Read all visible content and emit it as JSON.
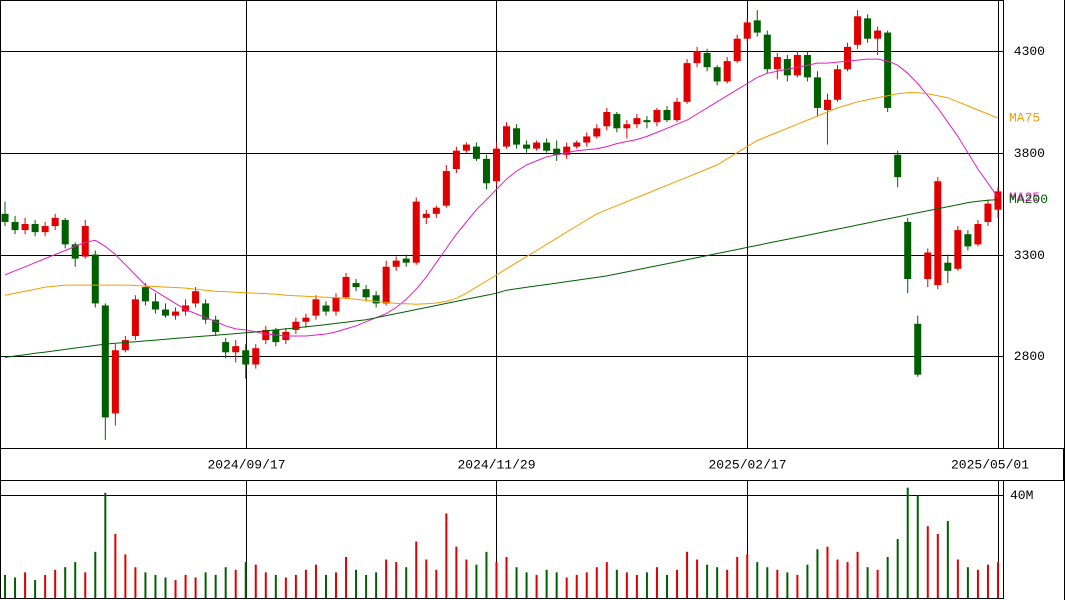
{
  "chart_data": {
    "type": "candlestick",
    "categories": [
      null,
      null,
      null,
      null,
      null,
      null,
      null,
      null,
      null,
      null,
      null,
      null,
      null,
      null,
      null,
      null,
      null,
      null,
      null,
      null,
      null,
      null,
      null,
      null,
      "2024/09/17",
      null,
      null,
      null,
      null,
      null,
      null,
      null,
      null,
      null,
      null,
      null,
      null,
      null,
      null,
      null,
      null,
      null,
      null,
      null,
      null,
      null,
      null,
      null,
      null,
      "2024/11/29",
      null,
      null,
      null,
      null,
      null,
      null,
      null,
      null,
      null,
      null,
      null,
      null,
      null,
      null,
      null,
      null,
      null,
      null,
      null,
      null,
      null,
      null,
      null,
      null,
      "2025/02/17",
      null,
      null,
      null,
      null,
      null,
      null,
      null,
      null,
      null,
      null,
      null,
      null,
      null,
      null,
      null,
      null,
      null,
      null,
      null,
      null,
      null,
      null,
      null,
      null,
      "2025/05/01"
    ],
    "open": [
      3500,
      3460,
      3420,
      3450,
      3410,
      3440,
      3470,
      3350,
      3290,
      3300,
      3050,
      2520,
      2830,
      2900,
      3140,
      3070,
      3030,
      3000,
      3020,
      3060,
      3060,
      2980,
      2870,
      2820,
      2830,
      2760,
      2880,
      2930,
      2880,
      2930,
      2970,
      3000,
      3050,
      3020,
      3090,
      3160,
      3130,
      3100,
      3060,
      3240,
      3280,
      3260,
      3480,
      3500,
      3540,
      3720,
      3810,
      3830,
      3770,
      3660,
      3830,
      3920,
      3840,
      3820,
      3850,
      3820,
      3790,
      3830,
      3850,
      3880,
      3930,
      3990,
      3920,
      3940,
      3960,
      3950,
      4010,
      3960,
      4050,
      4240,
      4290,
      4220,
      4150,
      4250,
      4360,
      4450,
      4380,
      4210,
      4260,
      4180,
      4280,
      4170,
      4010,
      4060,
      4210,
      4330,
      4460,
      4360,
      4390,
      3790,
      3460,
      2960,
      3180,
      3150,
      3260,
      3230,
      3400,
      3350,
      3460,
      3520
    ],
    "high": [
      3560,
      3490,
      3480,
      3470,
      3460,
      3500,
      3480,
      3360,
      3470,
      3320,
      3060,
      2860,
      2900,
      3100,
      3160,
      3110,
      3060,
      3040,
      3080,
      3140,
      3080,
      3000,
      2890,
      2880,
      2860,
      2860,
      2950,
      2940,
      2940,
      2990,
      3010,
      3100,
      3070,
      3110,
      3210,
      3180,
      3150,
      3120,
      3270,
      3290,
      3300,
      3580,
      3520,
      3540,
      3740,
      3830,
      3850,
      3850,
      3790,
      3850,
      3950,
      3940,
      3860,
      3860,
      3870,
      3860,
      3850,
      3860,
      3900,
      3940,
      4020,
      4000,
      3960,
      3990,
      3980,
      4020,
      4030,
      4070,
      4260,
      4320,
      4310,
      4230,
      4270,
      4380,
      4460,
      4500,
      4400,
      4290,
      4280,
      4300,
      4300,
      4200,
      4090,
      4230,
      4340,
      4500,
      4480,
      4420,
      4400,
      3810,
      3480,
      3000,
      3330,
      3680,
      3300,
      3440,
      3420,
      3470,
      3570,
      3630
    ],
    "low": [
      3440,
      3400,
      3400,
      3390,
      3390,
      3420,
      3330,
      3240,
      3280,
      3040,
      2390,
      2460,
      2820,
      2880,
      3050,
      3010,
      2990,
      2980,
      3000,
      3040,
      2960,
      2900,
      2790,
      2770,
      2690,
      2740,
      2860,
      2850,
      2860,
      2910,
      2940,
      2980,
      3000,
      3000,
      3080,
      3120,
      3070,
      3040,
      3050,
      3220,
      3240,
      3250,
      3450,
      3480,
      3530,
      3700,
      3800,
      3760,
      3620,
      3640,
      3820,
      3820,
      3800,
      3810,
      3800,
      3760,
      3770,
      3820,
      3830,
      3870,
      3910,
      3900,
      3870,
      3920,
      3920,
      3930,
      3950,
      3950,
      4040,
      4220,
      4200,
      4130,
      4140,
      4240,
      4340,
      4370,
      4190,
      4160,
      4150,
      4170,
      4150,
      3980,
      3840,
      4050,
      4200,
      4310,
      4340,
      4280,
      4000,
      3630,
      3110,
      2700,
      3140,
      3130,
      3160,
      3220,
      3320,
      3340,
      3440,
      3480
    ],
    "close": [
      3460,
      3420,
      3450,
      3410,
      3440,
      3480,
      3350,
      3280,
      3440,
      3060,
      2500,
      2830,
      2880,
      3080,
      3070,
      3030,
      3000,
      3020,
      3050,
      3120,
      2980,
      2920,
      2820,
      2850,
      2760,
      2840,
      2930,
      2870,
      2920,
      2970,
      2990,
      3080,
      3020,
      3090,
      3190,
      3140,
      3090,
      3060,
      3240,
      3270,
      3260,
      3560,
      3500,
      3530,
      3710,
      3810,
      3840,
      3770,
      3650,
      3820,
      3930,
      3840,
      3820,
      3850,
      3810,
      3790,
      3830,
      3850,
      3880,
      3920,
      4000,
      3920,
      3940,
      3970,
      3950,
      4010,
      3960,
      4050,
      4240,
      4300,
      4220,
      4150,
      4250,
      4360,
      4440,
      4390,
      4210,
      4270,
      4180,
      4280,
      4170,
      4020,
      4060,
      4210,
      4320,
      4470,
      4360,
      4400,
      4020,
      3680,
      3180,
      2710,
      3310,
      3660,
      3220,
      3420,
      3340,
      3450,
      3550,
      3610
    ],
    "volume": [
      9,
      8,
      10,
      7,
      9,
      11,
      12,
      14,
      10,
      18,
      41,
      25,
      17,
      12,
      10,
      9,
      8,
      7,
      9,
      8,
      10,
      9,
      12,
      11,
      14,
      13,
      10,
      9,
      8,
      9,
      11,
      13,
      9,
      10,
      16,
      11,
      9,
      10,
      15,
      14,
      12,
      22,
      15,
      11,
      33,
      20,
      15,
      13,
      18,
      14,
      16,
      12,
      10,
      9,
      11,
      10,
      8,
      9,
      10,
      12,
      14,
      11,
      10,
      9,
      10,
      12,
      9,
      11,
      18,
      15,
      13,
      12,
      11,
      16,
      17,
      14,
      12,
      11,
      10,
      9,
      13,
      19,
      20,
      15,
      14,
      18,
      12,
      11,
      16,
      23,
      43,
      40,
      28,
      25,
      30,
      15,
      12,
      11,
      13,
      14
    ],
    "up_color": "#e00000",
    "down_color": "#006000",
    "series": [
      {
        "name": "MA25",
        "color": "#e020c0",
        "values": [
          3200,
          3220,
          3240,
          3260,
          3280,
          3300,
          3320,
          3340,
          3360,
          3370,
          3340,
          3300,
          3250,
          3200,
          3150,
          3120,
          3090,
          3060,
          3030,
          3010,
          2990,
          2970,
          2950,
          2935,
          2930,
          2920,
          2910,
          2905,
          2900,
          2900,
          2900,
          2905,
          2910,
          2920,
          2935,
          2950,
          2970,
          2990,
          3010,
          3040,
          3080,
          3130,
          3190,
          3260,
          3330,
          3400,
          3460,
          3520,
          3570,
          3620,
          3670,
          3710,
          3740,
          3760,
          3780,
          3790,
          3800,
          3810,
          3815,
          3820,
          3830,
          3845,
          3855,
          3865,
          3880,
          3900,
          3920,
          3940,
          3960,
          3990,
          4020,
          4050,
          4080,
          4110,
          4140,
          4170,
          4190,
          4200,
          4210,
          4220,
          4230,
          4240,
          4240,
          4245,
          4250,
          4255,
          4260,
          4260,
          4250,
          4230,
          4190,
          4140,
          4080,
          4020,
          3950,
          3880,
          3800,
          3720,
          3650,
          3580
        ]
      },
      {
        "name": "MA75",
        "color": "#f0a000",
        "values": [
          3100,
          3110,
          3120,
          3130,
          3140,
          3145,
          3150,
          3150,
          3150,
          3150,
          3150,
          3150,
          3150,
          3148,
          3145,
          3143,
          3140,
          3138,
          3135,
          3130,
          3125,
          3120,
          3118,
          3115,
          3112,
          3110,
          3108,
          3105,
          3100,
          3098,
          3095,
          3092,
          3090,
          3088,
          3085,
          3080,
          3075,
          3070,
          3065,
          3060,
          3058,
          3056,
          3058,
          3062,
          3070,
          3085,
          3110,
          3140,
          3170,
          3200,
          3230,
          3260,
          3290,
          3320,
          3350,
          3380,
          3410,
          3440,
          3470,
          3500,
          3520,
          3540,
          3560,
          3580,
          3600,
          3620,
          3640,
          3660,
          3680,
          3700,
          3720,
          3740,
          3770,
          3800,
          3830,
          3860,
          3880,
          3900,
          3920,
          3940,
          3960,
          3980,
          4000,
          4020,
          4035,
          4050,
          4060,
          4070,
          4080,
          4090,
          4095,
          4095,
          4090,
          4080,
          4070,
          4050,
          4030,
          4010,
          3990,
          3970
        ]
      },
      {
        "name": "MA200",
        "color": "#006000",
        "values": [
          2795,
          2802,
          2808,
          2815,
          2821,
          2828,
          2834,
          2841,
          2847,
          2854,
          2860,
          2864,
          2868,
          2872,
          2876,
          2880,
          2884,
          2888,
          2892,
          2896,
          2900,
          2904,
          2908,
          2912,
          2916,
          2920,
          2925,
          2930,
          2935,
          2940,
          2945,
          2950,
          2956,
          2962,
          2968,
          2974,
          2980,
          2990,
          3000,
          3010,
          3020,
          3030,
          3040,
          3050,
          3060,
          3070,
          3080,
          3090,
          3100,
          3110,
          3125,
          3132,
          3139,
          3146,
          3153,
          3160,
          3167,
          3174,
          3181,
          3188,
          3195,
          3205,
          3215,
          3225,
          3235,
          3245,
          3255,
          3265,
          3275,
          3285,
          3295,
          3305,
          3315,
          3325,
          3335,
          3345,
          3355,
          3365,
          3375,
          3385,
          3395,
          3405,
          3415,
          3425,
          3435,
          3445,
          3455,
          3465,
          3475,
          3485,
          3495,
          3505,
          3515,
          3525,
          3535,
          3545,
          3555,
          3562,
          3567,
          3570
        ]
      }
    ],
    "ylim": [
      2350,
      4550
    ],
    "yticks": [
      2800,
      3300,
      3800,
      4300
    ],
    "volume_ylim": [
      0,
      46
    ],
    "volume_ticks": [
      {
        "value": 40,
        "label": "40M"
      }
    ]
  }
}
